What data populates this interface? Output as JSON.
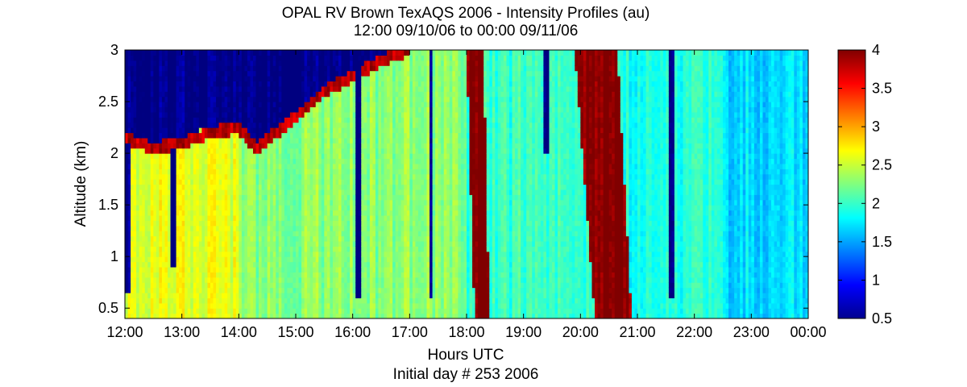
{
  "chart_data": {
    "type": "heatmap",
    "title": "OPAL RV Brown TexAQS 2006 - Intensity Profiles (au)",
    "subtitle": "12:00 09/10/06 to 00:00 09/11/06",
    "xlabel": "Hours UTC",
    "xlabel2": "Initial day # 253  2006",
    "ylabel": "Altitude (km)",
    "x_ticks": [
      "12:00",
      "13:00",
      "14:00",
      "15:00",
      "16:00",
      "17:00",
      "18:00",
      "19:00",
      "20:00",
      "21:00",
      "22:00",
      "23:00",
      "00:00"
    ],
    "xlim_hours": [
      12,
      24
    ],
    "y_ticks": [
      "0.5",
      "1",
      "1.5",
      "2",
      "2.5",
      "3"
    ],
    "ylim_km": [
      0.4,
      3.0
    ],
    "colorbar": {
      "ticks": [
        "0.5",
        "1",
        "1.5",
        "2",
        "2.5",
        "3",
        "3.5",
        "4"
      ],
      "range": [
        0.5,
        4.0
      ],
      "colormap": "jet"
    },
    "features": {
      "background_intensity": [
        {
          "from_hour": 12.0,
          "to_hour": 14.0,
          "value": 2.6
        },
        {
          "from_hour": 14.0,
          "to_hour": 18.0,
          "value": 2.3
        },
        {
          "from_hour": 18.0,
          "to_hour": 20.5,
          "value": 2.0
        },
        {
          "from_hour": 20.5,
          "to_hour": 22.5,
          "value": 1.9
        },
        {
          "from_hour": 22.5,
          "to_hour": 24.0,
          "value": 1.7
        }
      ],
      "boundary_layer_top": [
        {
          "hour": 12.0,
          "km": 2.15
        },
        {
          "hour": 12.5,
          "km": 2.05
        },
        {
          "hour": 13.0,
          "km": 2.1
        },
        {
          "hour": 13.5,
          "km": 2.2
        },
        {
          "hour": 14.0,
          "km": 2.25
        },
        {
          "hour": 14.3,
          "km": 2.05
        },
        {
          "hour": 15.0,
          "km": 2.35
        },
        {
          "hour": 15.5,
          "km": 2.6
        },
        {
          "hour": 16.0,
          "km": 2.75
        },
        {
          "hour": 16.5,
          "km": 2.9
        },
        {
          "hour": 17.0,
          "km": 3.0
        }
      ],
      "dark_gaps": [
        {
          "hour": 12.05,
          "from_km": 0.65,
          "to_km": 2.1
        },
        {
          "hour": 12.85,
          "from_km": 0.9,
          "to_km": 2.05
        },
        {
          "hour": 16.1,
          "from_km": 0.6,
          "to_km": 3.0
        },
        {
          "hour": 17.38,
          "from_km": 0.6,
          "to_km": 3.0
        },
        {
          "hour": 19.4,
          "from_km": 2.0,
          "to_km": 3.0
        },
        {
          "hour": 21.6,
          "from_km": 0.6,
          "to_km": 3.0
        }
      ],
      "high_intensity_plumes": [
        {
          "start_hour": 18.0,
          "end_hour": 18.4,
          "from_km": 0.4,
          "to_km": 3.0,
          "value": 4.0
        },
        {
          "start_hour": 19.9,
          "end_hour": 20.9,
          "from_km": 0.4,
          "to_km": 3.0,
          "value": 4.0
        }
      ]
    }
  }
}
